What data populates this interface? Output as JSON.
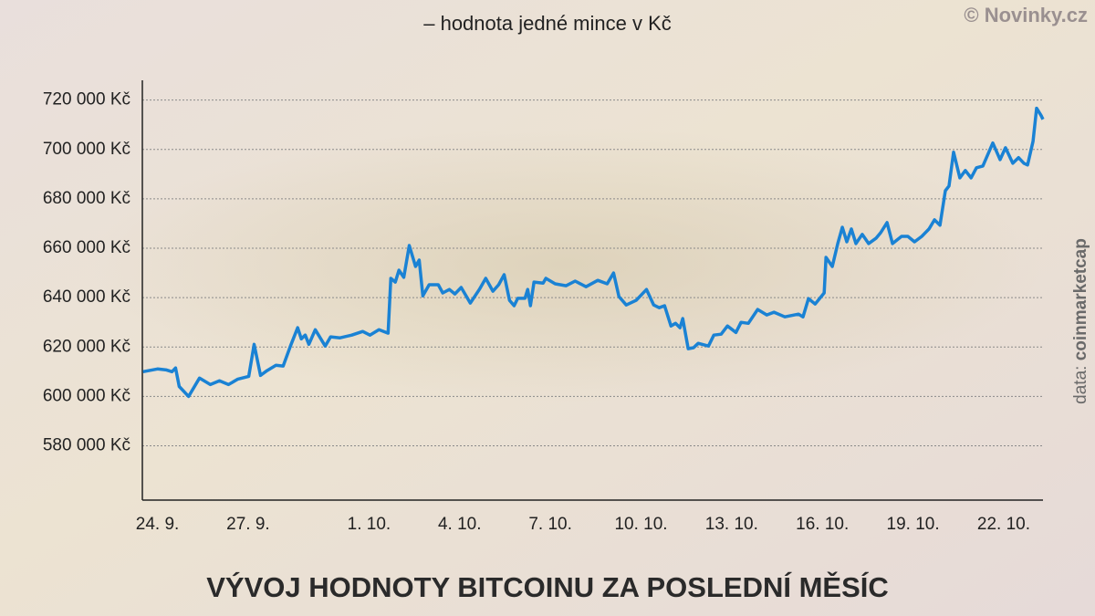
{
  "chart_data": {
    "type": "line",
    "subtitle": "– hodnota jedné mince v Kč",
    "title": "VÝVOJ HODNOTY BITCOINU ZA POSLEDNÍ MĚSÍC",
    "credit": "© Novinky.cz",
    "source_label": "data:",
    "source": "coinmarketcap",
    "color": "#1a82d4",
    "grid": true,
    "xlim": [
      -0.5,
      29.3
    ],
    "ylim": [
      558000,
      728000
    ],
    "xticks": [
      {
        "value": 0,
        "label": "24. 9."
      },
      {
        "value": 3,
        "label": "27. 9."
      },
      {
        "value": 7,
        "label": "1. 10."
      },
      {
        "value": 10,
        "label": "4. 10."
      },
      {
        "value": 13,
        "label": "7. 10."
      },
      {
        "value": 16,
        "label": "10. 10."
      },
      {
        "value": 19,
        "label": "13. 10."
      },
      {
        "value": 22,
        "label": "16. 10."
      },
      {
        "value": 25,
        "label": "19. 10."
      },
      {
        "value": 28,
        "label": "22. 10."
      }
    ],
    "yticks": [
      {
        "value": 580000,
        "label": "580 000 Kč"
      },
      {
        "value": 600000,
        "label": "600 000 Kč"
      },
      {
        "value": 620000,
        "label": "620 000 Kč"
      },
      {
        "value": 640000,
        "label": "640 000 Kč"
      },
      {
        "value": 660000,
        "label": "660 000 Kč"
      },
      {
        "value": 680000,
        "label": "680 000 Kč"
      },
      {
        "value": 700000,
        "label": "700 000 Kč"
      },
      {
        "value": 720000,
        "label": "720 000 Kč"
      }
    ],
    "x": [
      -0.48,
      0,
      0.3,
      0.48,
      0.6,
      0.72,
      1.03,
      1.39,
      1.75,
      2.05,
      2.35,
      2.66,
      3.02,
      3.2,
      3.41,
      3.62,
      3.92,
      4.16,
      4.4,
      4.64,
      4.76,
      4.89,
      5.01,
      5.22,
      5.55,
      5.73,
      6.04,
      6.43,
      6.79,
      7.03,
      7.33,
      7.63,
      7.72,
      7.87,
      7.99,
      8.15,
      8.33,
      8.54,
      8.66,
      8.78,
      8.99,
      9.29,
      9.44,
      9.66,
      9.84,
      10.05,
      10.35,
      10.65,
      10.86,
      11.1,
      11.29,
      11.47,
      11.65,
      11.8,
      11.92,
      12.16,
      12.25,
      12.34,
      12.46,
      12.76,
      12.85,
      13.16,
      13.52,
      13.82,
      14.18,
      14.57,
      14.88,
      15.09,
      15.27,
      15.51,
      15.84,
      16.18,
      16.42,
      16.6,
      16.78,
      16.99,
      17.14,
      17.29,
      17.38,
      17.56,
      17.74,
      17.89,
      18.23,
      18.41,
      18.65,
      18.86,
      19.14,
      19.31,
      19.55,
      19.86,
      20.16,
      20.4,
      20.76,
      21.21,
      21.36,
      21.54,
      21.76,
      22.06,
      22.12,
      22.33,
      22.51,
      22.66,
      22.81,
      22.96,
      23.11,
      23.32,
      23.53,
      23.78,
      23.93,
      24.14,
      24.32,
      24.62,
      24.83,
      25.05,
      25.29,
      25.53,
      25.71,
      25.89,
      26.07,
      26.19,
      26.34,
      26.55,
      26.73,
      26.92,
      27.1,
      27.31,
      27.64,
      27.88,
      28.06,
      28.3,
      28.49,
      28.67,
      28.79,
      28.97,
      29.09,
      29.24,
      29.3
    ],
    "values": [
      610000,
      611100,
      610700,
      610000,
      611500,
      604000,
      600000,
      607400,
      604800,
      606300,
      604800,
      607000,
      608100,
      621100,
      608500,
      610400,
      612600,
      612300,
      620400,
      627800,
      623300,
      624800,
      621100,
      627000,
      620400,
      624100,
      623700,
      624800,
      626300,
      624800,
      627000,
      625600,
      647800,
      646300,
      651100,
      648200,
      661100,
      652600,
      655200,
      640700,
      645200,
      645200,
      641900,
      643300,
      641500,
      644100,
      637800,
      643300,
      647800,
      642600,
      645200,
      649300,
      638900,
      636700,
      639700,
      639700,
      643300,
      636700,
      646300,
      645900,
      647800,
      645600,
      644800,
      646700,
      644400,
      647000,
      645600,
      650000,
      640400,
      637000,
      638900,
      643300,
      637000,
      635900,
      636700,
      628500,
      629600,
      627800,
      631500,
      619300,
      619700,
      621500,
      620400,
      624800,
      625200,
      628500,
      625900,
      630000,
      629600,
      635200,
      633000,
      634100,
      632200,
      633300,
      632200,
      639600,
      637400,
      641900,
      656300,
      652600,
      661900,
      668500,
      662600,
      667800,
      661900,
      665600,
      661900,
      664100,
      666300,
      670400,
      661900,
      664800,
      664800,
      662600,
      664800,
      667800,
      671500,
      669300,
      683300,
      685200,
      698900,
      688500,
      691500,
      688500,
      692600,
      693300,
      702600,
      695900,
      700700,
      694400,
      696700,
      694400,
      693700,
      703300,
      716700,
      713700,
      712200
    ]
  }
}
